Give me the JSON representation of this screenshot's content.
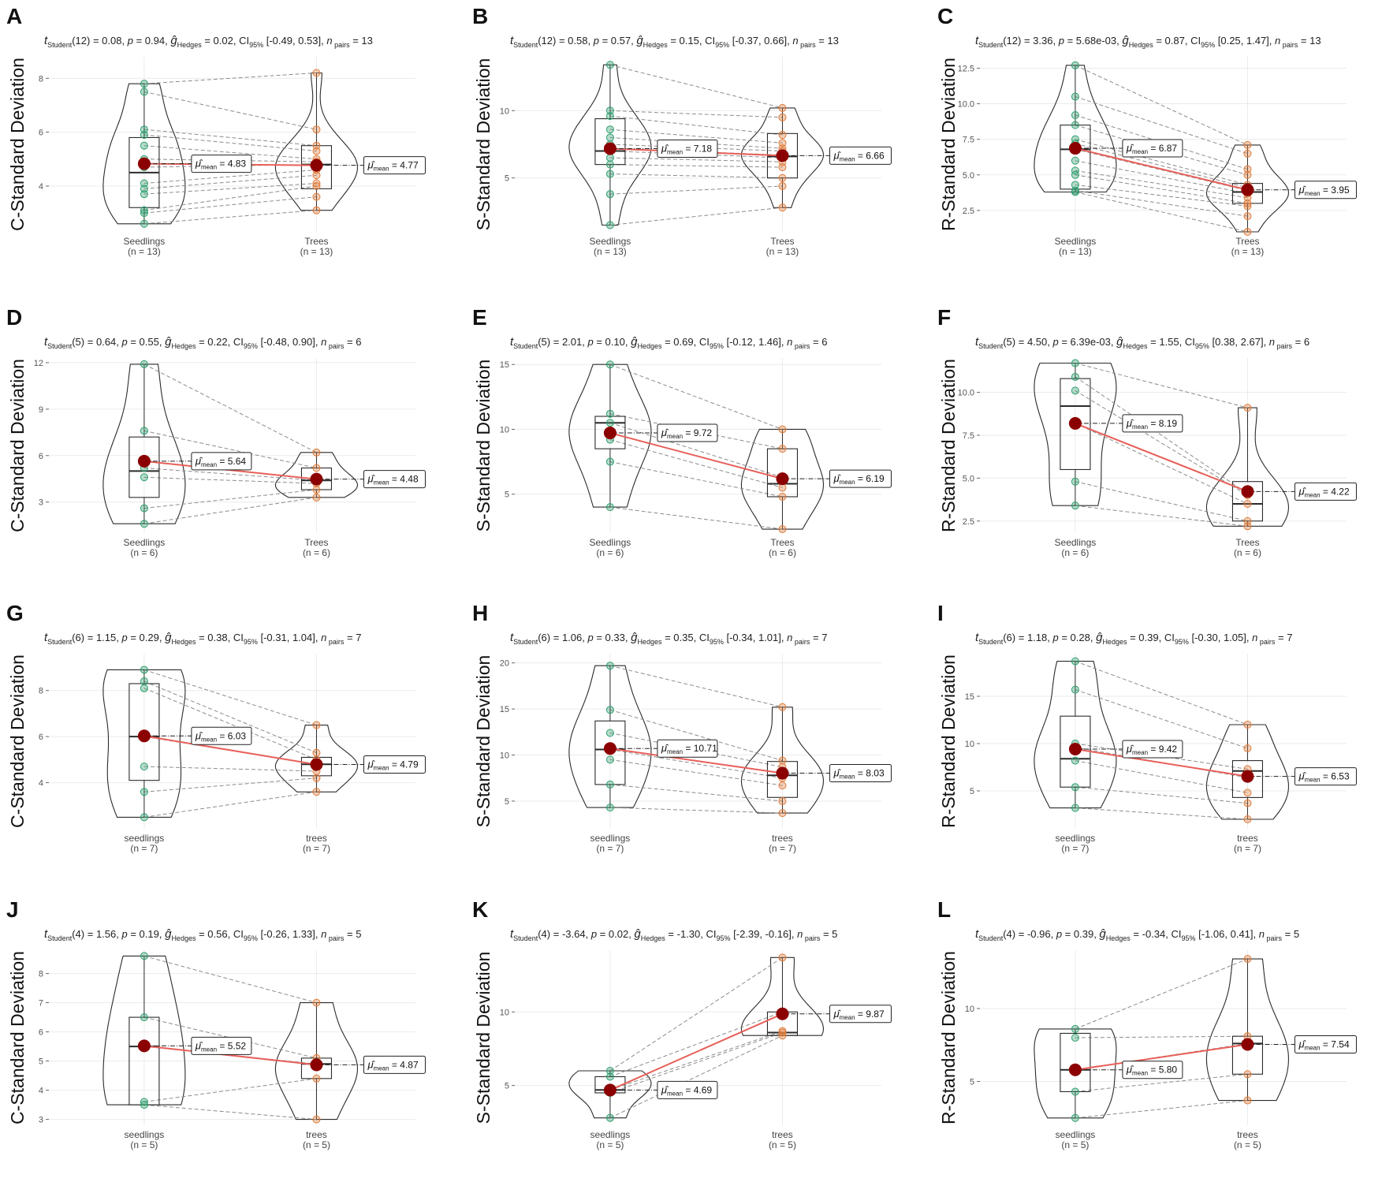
{
  "figure": {
    "colors": {
      "group1": "#2e9e6e",
      "group2": "#e07b39",
      "mean": "#8b0000",
      "mean_line": "#e8605a",
      "grid": "#ebebeb",
      "pair_line": "#8c8c8c",
      "outline": "#2b2b2b"
    }
  },
  "chart_data": [
    {
      "letter": "A",
      "type": "violin-paired",
      "ylabel": "C-Standard Deviation",
      "stat": {
        "df": "12",
        "t": "0.08",
        "p": "0.94",
        "g": "0.02",
        "ci": "[-0.49, 0.53]",
        "n": "13"
      },
      "ylim": [
        2.3,
        8.8
      ],
      "yticks": [
        4,
        6,
        8
      ],
      "yticklabels": [
        "4",
        "6",
        "8"
      ],
      "groups": [
        {
          "name": "Seedlings",
          "n_label": "(n = 13)",
          "mean": 4.83,
          "mean_label": "4.83",
          "values": [
            2.6,
            3.0,
            3.1,
            3.7,
            3.9,
            4.1,
            4.7,
            5.0,
            5.5,
            5.9,
            6.1,
            7.5,
            7.8
          ],
          "box": [
            3.2,
            4.5,
            5.8
          ],
          "whisk": [
            2.6,
            7.8
          ]
        },
        {
          "name": "Trees",
          "n_label": "(n = 13)",
          "mean": 4.77,
          "mean_label": "4.77",
          "values": [
            3.1,
            3.6,
            4.0,
            4.1,
            4.4,
            4.6,
            4.8,
            4.9,
            5.0,
            5.3,
            5.5,
            6.1,
            8.2
          ],
          "box": [
            3.9,
            4.8,
            5.5
          ],
          "whisk": [
            3.1,
            8.2
          ]
        }
      ]
    },
    {
      "letter": "B",
      "type": "violin-paired",
      "ylabel": "S-Standard Deviation",
      "stat": {
        "df": "12",
        "t": "0.58",
        "p": "0.57",
        "g": "0.15",
        "ci": "[-0.37, 0.66]",
        "n": "13"
      },
      "ylim": [
        1.0,
        14.0
      ],
      "yticks": [
        5,
        10
      ],
      "yticklabels": [
        "5",
        "10"
      ],
      "groups": [
        {
          "name": "Seedlings",
          "n_label": "(n = 13)",
          "mean": 7.18,
          "mean_label": "7.18",
          "values": [
            1.5,
            3.8,
            5.3,
            6.0,
            6.5,
            7.0,
            7.2,
            7.5,
            8.0,
            8.6,
            9.6,
            10.0,
            13.4
          ],
          "box": [
            6.0,
            7.0,
            9.4
          ],
          "whisk": [
            1.5,
            13.4
          ]
        },
        {
          "name": "Trees",
          "n_label": "(n = 13)",
          "mean": 6.66,
          "mean_label": "6.66",
          "values": [
            2.8,
            4.4,
            5.0,
            5.8,
            6.2,
            6.5,
            6.7,
            7.0,
            7.2,
            7.6,
            8.2,
            9.5,
            10.2
          ],
          "box": [
            5.0,
            6.6,
            8.3
          ],
          "whisk": [
            2.8,
            10.2
          ]
        }
      ]
    },
    {
      "letter": "C",
      "type": "violin-paired",
      "ylabel": "R-Standard Deviation",
      "stat": {
        "df": "12",
        "t": "3.36",
        "p": "5.68e-03",
        "g": "0.87",
        "ci": "[0.25, 1.47]",
        "n": "13"
      },
      "ylim": [
        1.0,
        13.3
      ],
      "yticks": [
        2.5,
        5.0,
        7.5,
        10.0,
        12.5
      ],
      "yticklabels": [
        "2.5",
        "5.0",
        "7.5",
        "10.0",
        "12.5"
      ],
      "groups": [
        {
          "name": "Seedlings",
          "n_label": "(n = 13)",
          "mean": 6.87,
          "mean_label": "6.87",
          "values": [
            3.8,
            3.9,
            4.3,
            5.0,
            5.3,
            6.0,
            6.8,
            7.2,
            7.5,
            8.5,
            9.2,
            10.5,
            12.7
          ],
          "box": [
            4.0,
            6.8,
            8.5
          ],
          "whisk": [
            3.8,
            12.7
          ]
        },
        {
          "name": "Trees",
          "n_label": "(n = 13)",
          "mean": 3.95,
          "mean_label": "3.95",
          "values": [
            1.0,
            2.1,
            2.8,
            3.0,
            3.4,
            3.7,
            3.9,
            4.1,
            4.3,
            5.0,
            5.4,
            6.5,
            7.1
          ],
          "box": [
            3.0,
            3.8,
            4.4
          ],
          "whisk": [
            1.0,
            7.1
          ]
        }
      ]
    },
    {
      "letter": "D",
      "type": "violin-paired",
      "ylabel": "C-Standard Deviation",
      "stat": {
        "df": "5",
        "t": "0.64",
        "p": "0.55",
        "g": "0.22",
        "ci": "[-0.48, 0.90]",
        "n": "6"
      },
      "ylim": [
        1.0,
        12.3
      ],
      "yticks": [
        3,
        6,
        9,
        12
      ],
      "yticklabels": [
        "3",
        "6",
        "9",
        "12"
      ],
      "groups": [
        {
          "name": "Seedlings",
          "n_label": "(n = 6)",
          "mean": 5.64,
          "mean_label": "5.64",
          "values": [
            1.6,
            2.6,
            4.6,
            5.2,
            7.6,
            11.9
          ],
          "box": [
            3.3,
            5.0,
            7.2
          ],
          "whisk": [
            1.6,
            11.9
          ]
        },
        {
          "name": "Trees",
          "n_label": "(n = 6)",
          "mean": 4.48,
          "mean_label": "4.48",
          "values": [
            3.3,
            3.8,
            4.2,
            4.4,
            5.2,
            6.2
          ],
          "box": [
            3.8,
            4.4,
            5.2
          ],
          "whisk": [
            3.3,
            6.2
          ]
        }
      ]
    },
    {
      "letter": "E",
      "type": "violin-paired",
      "ylabel": "S-Standard Deviation",
      "stat": {
        "df": "5",
        "t": "2.01",
        "p": "0.10",
        "g": "0.69",
        "ci": "[-0.12, 1.46]",
        "n": "6"
      },
      "ylim": [
        2.0,
        15.5
      ],
      "yticks": [
        5,
        10,
        15
      ],
      "yticklabels": [
        "5",
        "10",
        "15"
      ],
      "groups": [
        {
          "name": "Seedlings",
          "n_label": "(n = 6)",
          "mean": 9.72,
          "mean_label": "9.72",
          "values": [
            4.0,
            7.5,
            9.2,
            10.5,
            11.2,
            15.0
          ],
          "box": [
            8.5,
            10.5,
            11.0
          ],
          "whisk": [
            4.0,
            15.0
          ]
        },
        {
          "name": "Trees",
          "n_label": "(n = 6)",
          "mean": 6.19,
          "mean_label": "6.19",
          "values": [
            2.3,
            4.8,
            5.5,
            6.3,
            8.5,
            10.0
          ],
          "box": [
            4.8,
            5.8,
            8.5
          ],
          "whisk": [
            2.3,
            10.0
          ]
        }
      ]
    },
    {
      "letter": "F",
      "type": "violin-paired",
      "ylabel": "R-Standard Deviation",
      "stat": {
        "df": "5",
        "t": "4.50",
        "p": "6.39e-03",
        "g": "1.55",
        "ci": "[0.38, 2.67]",
        "n": "6"
      },
      "ylim": [
        1.8,
        12.0
      ],
      "yticks": [
        2.5,
        5.0,
        7.5,
        10.0
      ],
      "yticklabels": [
        "2.5",
        "5.0",
        "7.5",
        "10.0"
      ],
      "groups": [
        {
          "name": "Seedlings",
          "n_label": "(n = 6)",
          "mean": 8.19,
          "mean_label": "8.19",
          "values": [
            3.4,
            4.8,
            8.2,
            10.1,
            10.9,
            11.7
          ],
          "box": [
            5.5,
            9.2,
            10.8
          ],
          "whisk": [
            3.4,
            11.7
          ]
        },
        {
          "name": "Trees",
          "n_label": "(n = 6)",
          "mean": 4.22,
          "mean_label": "4.22",
          "values": [
            2.2,
            2.5,
            3.5,
            4.0,
            4.1,
            9.1
          ],
          "box": [
            2.5,
            3.5,
            4.8
          ],
          "whisk": [
            2.2,
            9.1
          ]
        }
      ]
    },
    {
      "letter": "G",
      "type": "violin-paired",
      "ylabel": "C-Standard Deviation",
      "stat": {
        "df": "6",
        "t": "1.15",
        "p": "0.29",
        "g": "0.38",
        "ci": "[-0.31, 1.04]",
        "n": "7"
      },
      "ylim": [
        2.0,
        9.6
      ],
      "yticks": [
        4,
        6,
        8
      ],
      "yticklabels": [
        "4",
        "6",
        "8"
      ],
      "groups": [
        {
          "name": "seedlings",
          "n_label": "(n = 7)",
          "mean": 6.03,
          "mean_label": "6.03",
          "values": [
            2.5,
            3.6,
            4.7,
            6.0,
            8.1,
            8.4,
            8.9
          ],
          "box": [
            4.1,
            6.0,
            8.3
          ],
          "whisk": [
            2.5,
            8.9
          ]
        },
        {
          "name": "trees",
          "n_label": "(n = 7)",
          "mean": 4.79,
          "mean_label": "4.79",
          "values": [
            3.6,
            4.2,
            4.5,
            4.8,
            5.0,
            5.3,
            6.5
          ],
          "box": [
            4.3,
            4.8,
            5.1
          ],
          "whisk": [
            3.6,
            6.5
          ]
        }
      ]
    },
    {
      "letter": "H",
      "type": "violin-paired",
      "ylabel": "S-Standard Deviation",
      "stat": {
        "df": "6",
        "t": "1.06",
        "p": "0.33",
        "g": "0.35",
        "ci": "[-0.34, 1.01]",
        "n": "7"
      },
      "ylim": [
        2.0,
        21.0
      ],
      "yticks": [
        5,
        10,
        15,
        20
      ],
      "yticklabels": [
        "5",
        "10",
        "15",
        "20"
      ],
      "groups": [
        {
          "name": "seedlings",
          "n_label": "(n = 7)",
          "mean": 10.71,
          "mean_label": "10.71",
          "values": [
            4.3,
            6.8,
            9.5,
            10.6,
            12.4,
            14.9,
            19.7
          ],
          "box": [
            6.8,
            10.6,
            13.7
          ],
          "whisk": [
            4.3,
            19.7
          ]
        },
        {
          "name": "trees",
          "n_label": "(n = 7)",
          "mean": 8.03,
          "mean_label": "8.03",
          "values": [
            3.7,
            5.0,
            6.7,
            7.5,
            8.7,
            9.4,
            15.2
          ],
          "box": [
            5.4,
            7.8,
            9.3
          ],
          "whisk": [
            3.7,
            15.2
          ]
        }
      ]
    },
    {
      "letter": "I",
      "type": "violin-paired",
      "ylabel": "R-Standard Deviation",
      "stat": {
        "df": "6",
        "t": "1.18",
        "p": "0.28",
        "g": "0.39",
        "ci": "[-0.30, 1.05]",
        "n": "7"
      },
      "ylim": [
        1.0,
        19.5
      ],
      "yticks": [
        5,
        10,
        15
      ],
      "yticklabels": [
        "5",
        "10",
        "15"
      ],
      "groups": [
        {
          "name": "seedlings",
          "n_label": "(n = 7)",
          "mean": 9.42,
          "mean_label": "9.42",
          "values": [
            3.2,
            5.4,
            8.2,
            9.6,
            10.0,
            15.7,
            18.7
          ],
          "box": [
            5.4,
            8.4,
            12.9
          ],
          "whisk": [
            3.2,
            18.7
          ]
        },
        {
          "name": "trees",
          "n_label": "(n = 7)",
          "mean": 6.53,
          "mean_label": "6.53",
          "values": [
            2.0,
            3.7,
            4.8,
            6.4,
            7.3,
            9.5,
            12.0
          ],
          "box": [
            4.3,
            7.1,
            8.2
          ],
          "whisk": [
            2.0,
            12.0
          ]
        }
      ]
    },
    {
      "letter": "J",
      "type": "violin-paired",
      "ylabel": "C-Standard Deviation",
      "stat": {
        "df": "4",
        "t": "1.56",
        "p": "0.19",
        "g": "0.56",
        "ci": "[-0.26, 1.33]",
        "n": "5"
      },
      "ylim": [
        2.8,
        8.8
      ],
      "yticks": [
        3,
        4,
        5,
        6,
        7,
        8
      ],
      "yticklabels": [
        "3",
        "4",
        "5",
        "6",
        "7",
        "8"
      ],
      "groups": [
        {
          "name": "seedlings",
          "n_label": "(n = 5)",
          "mean": 5.52,
          "mean_label": "5.52",
          "values": [
            3.5,
            3.6,
            5.5,
            6.5,
            8.6
          ],
          "box": [
            3.5,
            5.5,
            6.5
          ],
          "whisk": [
            3.5,
            8.6
          ]
        },
        {
          "name": "trees",
          "n_label": "(n = 5)",
          "mean": 4.87,
          "mean_label": "4.87",
          "values": [
            3.0,
            4.4,
            4.9,
            5.1,
            7.0
          ],
          "box": [
            4.4,
            4.9,
            5.1
          ],
          "whisk": [
            3.0,
            7.0
          ]
        }
      ]
    },
    {
      "letter": "K",
      "type": "violin-paired",
      "ylabel": "S-Standard Deviation",
      "stat": {
        "df": "4",
        "t": "-3.64",
        "p": "0.02",
        "g": "-1.30",
        "ci": "[-2.39, -0.16]",
        "n": "5"
      },
      "ylim": [
        2.3,
        14.2
      ],
      "yticks": [
        5,
        10
      ],
      "yticklabels": [
        "5",
        "10"
      ],
      "groups": [
        {
          "name": "seedlings",
          "n_label": "(n = 5)",
          "mean": 4.69,
          "mean_label": "4.69",
          "values": [
            2.8,
            4.5,
            4.7,
            5.6,
            6.0
          ],
          "box": [
            4.5,
            4.7,
            5.6
          ],
          "whisk": [
            2.8,
            6.0
          ]
        },
        {
          "name": "trees",
          "n_label": "(n = 5)",
          "mean": 9.87,
          "mean_label": "9.87",
          "values": [
            8.4,
            8.6,
            8.7,
            10.0,
            13.7
          ],
          "box": [
            8.4,
            8.6,
            10.0
          ],
          "whisk": [
            8.4,
            13.7
          ]
        }
      ]
    },
    {
      "letter": "L",
      "type": "violin-paired",
      "ylabel": "R-Standard Deviation",
      "stat": {
        "df": "4",
        "t": "-0.96",
        "p": "0.39",
        "g": "-0.34",
        "ci": "[-1.06, 0.41]",
        "n": "5"
      },
      "ylim": [
        2.0,
        14.0
      ],
      "yticks": [
        5,
        10
      ],
      "yticklabels": [
        "5",
        "10"
      ],
      "groups": [
        {
          "name": "seedlings",
          "n_label": "(n = 5)",
          "mean": 5.8,
          "mean_label": "5.80",
          "values": [
            2.5,
            4.3,
            5.8,
            8.0,
            8.6
          ],
          "box": [
            4.3,
            5.8,
            8.3
          ],
          "whisk": [
            2.5,
            8.6
          ]
        },
        {
          "name": "trees",
          "n_label": "(n = 5)",
          "mean": 7.54,
          "mean_label": "7.54",
          "values": [
            3.7,
            5.5,
            7.6,
            8.1,
            13.4
          ],
          "box": [
            5.5,
            7.6,
            8.1
          ],
          "whisk": [
            3.7,
            13.4
          ]
        }
      ]
    }
  ]
}
